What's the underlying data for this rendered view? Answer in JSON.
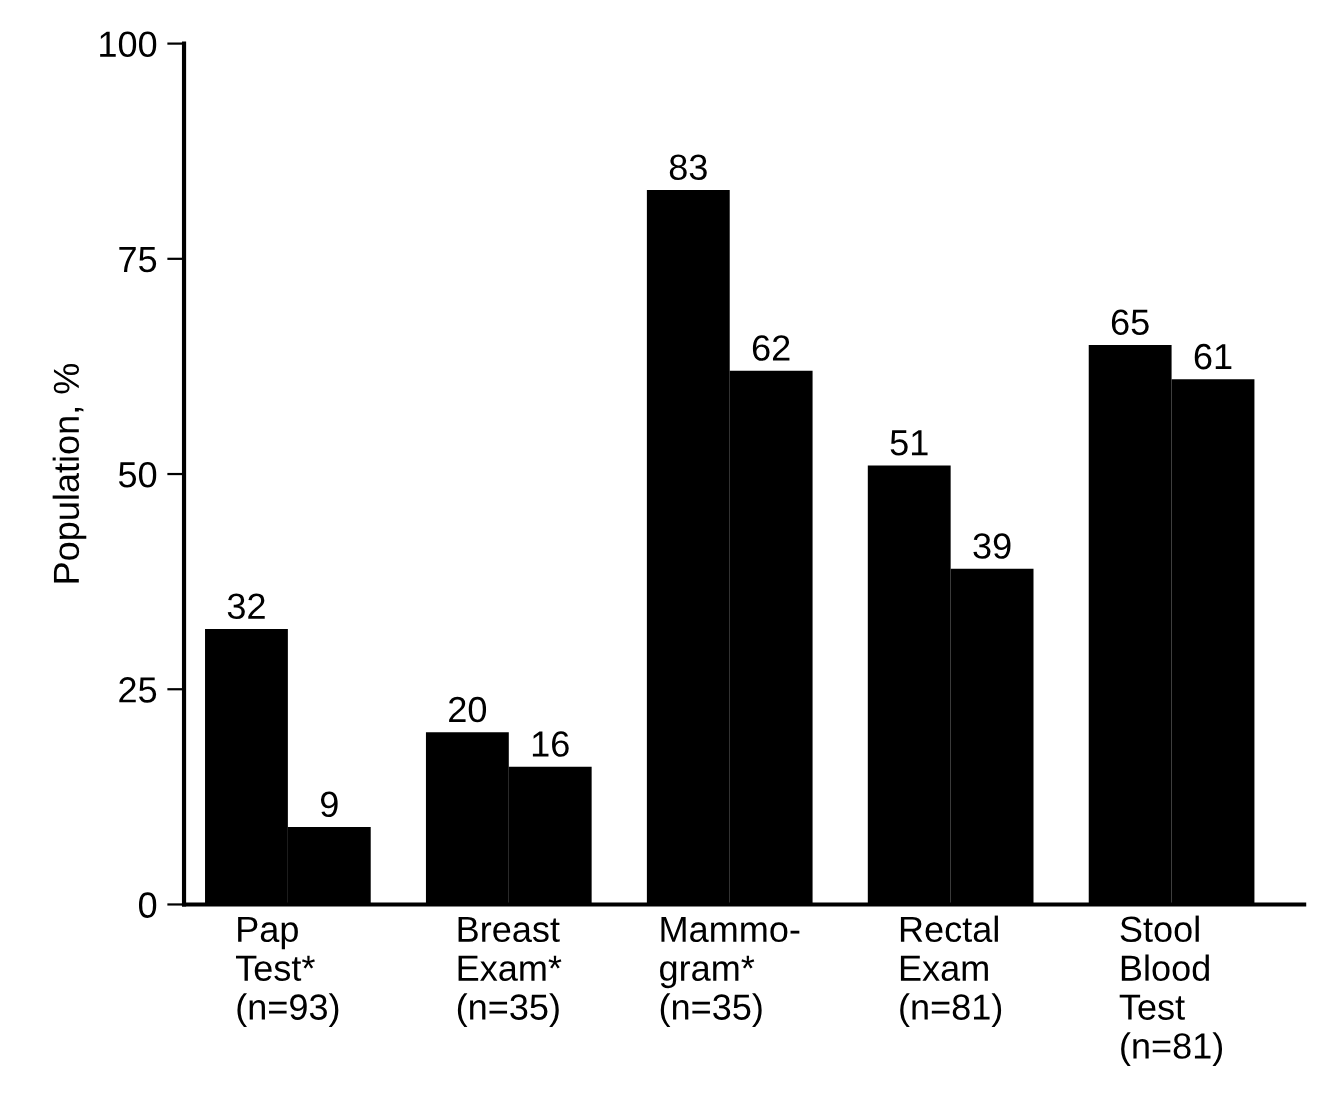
{
  "chart_data": {
    "type": "bar",
    "ylabel": "Population, %",
    "categories": [
      "Pap\nTest*\n(n=93)",
      "Breast\nExam*\n(n=35)",
      "Mammo-\ngram*\n(n=35)",
      "Rectal\nExam\n(n=81)",
      "Stool\nBlood\nTest\n(n=81)"
    ],
    "series": [
      {
        "color": "#000000",
        "values": [
          32,
          20,
          83,
          51,
          65
        ]
      },
      {
        "color": "#000000",
        "values": [
          9,
          16,
          62,
          39,
          61
        ]
      }
    ],
    "ylim": [
      0,
      100
    ],
    "yticks": [
      0,
      25,
      50,
      75,
      100
    ],
    "data_labels": true
  }
}
